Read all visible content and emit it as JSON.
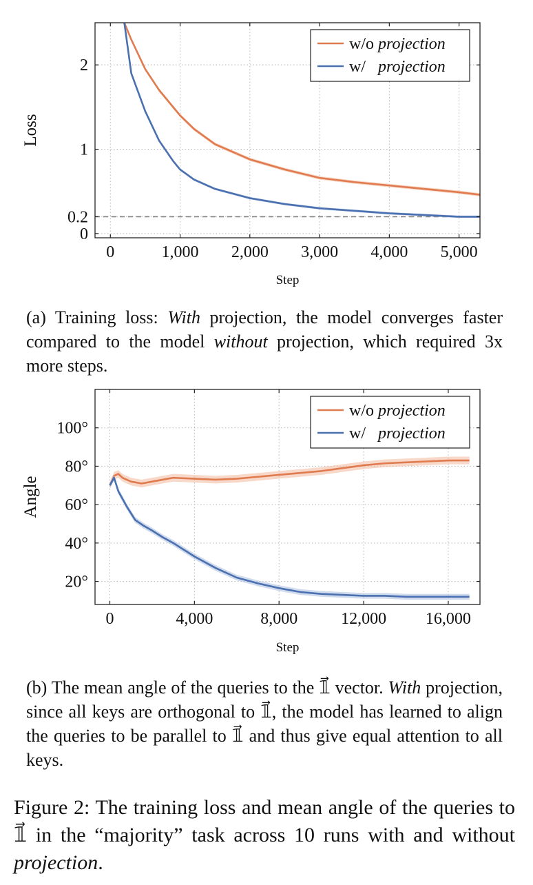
{
  "colors": {
    "orange": "#e07b4f",
    "blue": "#4a70b0",
    "orange_band": "#f2b89a",
    "blue_band": "#a9bde0"
  },
  "chart_data": [
    {
      "type": "line",
      "id": "loss",
      "xlabel": "Step",
      "ylabel": "Loss",
      "xlim": [
        -220,
        5300
      ],
      "ylim": [
        -0.05,
        2.5
      ],
      "xticks": [
        0,
        1000,
        2000,
        3000,
        4000,
        5000
      ],
      "xtick_labels": [
        "0",
        "1,000",
        "2,000",
        "3,000",
        "4,000",
        "5,000"
      ],
      "yticks": [
        0,
        0.2,
        1,
        2
      ],
      "ytick_labels": [
        "0",
        "0.2",
        "1",
        "2"
      ],
      "grid": true,
      "reference_line": {
        "y": 0.2,
        "style": "dashed"
      },
      "legend": {
        "position": "top-right",
        "entries": [
          {
            "pre": "w/o",
            "label": "projection"
          },
          {
            "pre": "w/",
            "label": "projection"
          }
        ]
      },
      "series": [
        {
          "name": "w/o projection",
          "color": "orange",
          "band": 0.02,
          "x": [
            200,
            300,
            500,
            700,
            1000,
            1200,
            1500,
            2000,
            2500,
            3000,
            3500,
            4000,
            4500,
            5000,
            5300
          ],
          "y": [
            2.5,
            2.3,
            1.95,
            1.7,
            1.4,
            1.24,
            1.06,
            0.88,
            0.76,
            0.66,
            0.61,
            0.57,
            0.53,
            0.49,
            0.46
          ]
        },
        {
          "name": "w/ projection",
          "color": "blue",
          "band": 0.015,
          "x": [
            200,
            300,
            500,
            700,
            900,
            1000,
            1200,
            1500,
            2000,
            2500,
            3000,
            3500,
            4000,
            4500,
            5000,
            5300
          ],
          "y": [
            2.5,
            1.9,
            1.45,
            1.1,
            0.86,
            0.76,
            0.64,
            0.53,
            0.42,
            0.35,
            0.3,
            0.27,
            0.24,
            0.22,
            0.2,
            0.2
          ]
        }
      ]
    },
    {
      "type": "line",
      "id": "angle",
      "xlabel": "Step",
      "ylabel": "Angle",
      "xlim": [
        -700,
        17500
      ],
      "ylim": [
        8,
        120
      ],
      "xticks": [
        0,
        4000,
        8000,
        12000,
        16000
      ],
      "xtick_labels": [
        "0",
        "4,000",
        "8,000",
        "12,000",
        "16,000"
      ],
      "yticks": [
        20,
        40,
        60,
        80,
        100
      ],
      "ytick_labels": [
        "20°",
        "40°",
        "60°",
        "80°",
        "100°"
      ],
      "grid": true,
      "legend": {
        "position": "top-right",
        "entries": [
          {
            "pre": "w/o",
            "label": "projection"
          },
          {
            "pre": "w/",
            "label": "projection"
          }
        ]
      },
      "series": [
        {
          "name": "w/o projection",
          "color": "orange",
          "band": 2,
          "x": [
            0,
            200,
            400,
            600,
            1000,
            1500,
            2000,
            2500,
            3000,
            4000,
            5000,
            6000,
            7000,
            8000,
            9000,
            10000,
            11000,
            12000,
            13000,
            14000,
            15000,
            16000,
            17000
          ],
          "y": [
            70,
            75,
            76,
            74,
            72,
            71,
            72,
            73,
            74,
            73.5,
            73,
            73.5,
            74.5,
            75.5,
            76.5,
            77.5,
            79,
            80.5,
            81.5,
            82,
            82.5,
            83,
            83
          ]
        },
        {
          "name": "w/ projection",
          "color": "blue",
          "band": 1.5,
          "x": [
            0,
            200,
            400,
            800,
            1200,
            1600,
            2000,
            2500,
            3000,
            4000,
            5000,
            6000,
            7000,
            8000,
            9000,
            10000,
            11000,
            12000,
            13000,
            14000,
            15000,
            16000,
            17000
          ],
          "y": [
            70,
            74,
            67,
            59,
            52,
            49,
            46.5,
            43,
            40,
            33,
            27,
            22,
            19,
            16.5,
            14.5,
            13.5,
            13,
            12.5,
            12.5,
            12,
            12,
            12,
            12
          ]
        }
      ]
    }
  ],
  "captions": {
    "a_prefix": "(a) Training loss: ",
    "a_em1": "With",
    "a_mid": " projection, the model converges faster compared to the model ",
    "a_em2": "without",
    "a_suffix": " projection, which required 3x more steps.",
    "b_prefix": "(b) The mean angle of the queries to the 𝟙⃗ vector. ",
    "b_em1": "With",
    "b_suffix": " projection, since all keys are orthogonal to 𝟙⃗, the model has learned to align the queries to be parallel to 𝟙⃗ and thus give equal attention to all keys.",
    "fig_prefix": "Figure 2:  The training loss and mean angle of the queries to 𝟙⃗ in the “majority” task across 10 runs with and without ",
    "fig_em": "projection",
    "fig_suffix": "."
  }
}
